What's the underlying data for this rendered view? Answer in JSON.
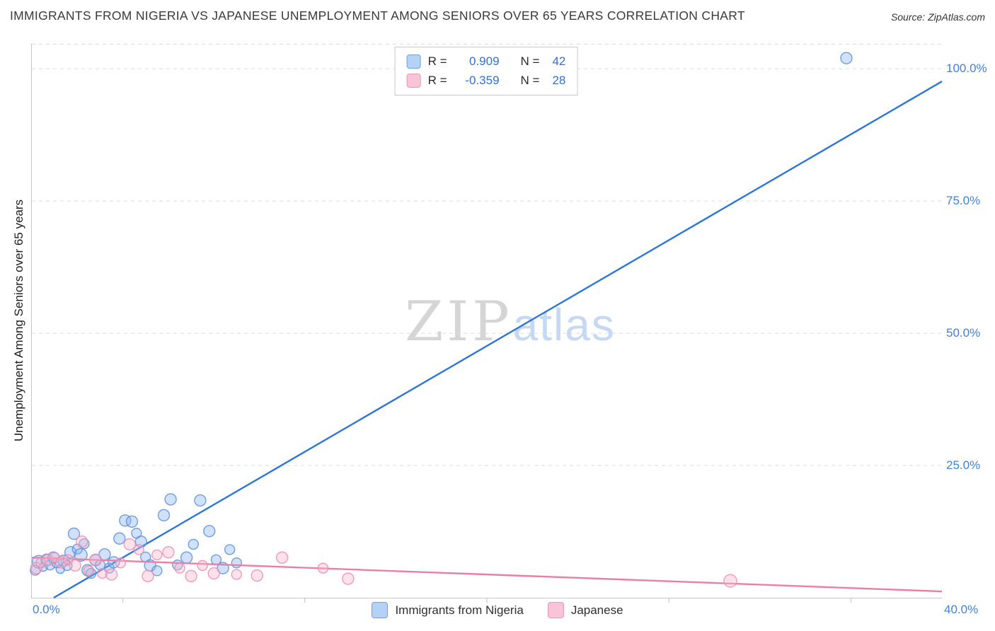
{
  "header": {
    "title": "IMMIGRANTS FROM NIGERIA VS JAPANESE UNEMPLOYMENT AMONG SENIORS OVER 65 YEARS CORRELATION CHART",
    "source": "Source: ZipAtlas.com"
  },
  "watermark": {
    "zip": "ZIP",
    "atlas": "atlas"
  },
  "axes": {
    "y_label": "Unemployment Among Seniors over 65 years",
    "y_ticks": [
      "100.0%",
      "75.0%",
      "50.0%",
      "25.0%"
    ],
    "x_min_label": "0.0%",
    "x_max_label": "40.0%"
  },
  "legend_box": {
    "r_label": "R =",
    "n_label": "N =",
    "series": [
      {
        "r": "0.909",
        "n": "42"
      },
      {
        "r": "-0.359",
        "n": "28"
      }
    ]
  },
  "bottom_legend": [
    {
      "label": "Immigrants from Nigeria"
    },
    {
      "label": "Japanese"
    }
  ],
  "swatches": {
    "nigeria": {
      "fill": "#b4d1f6",
      "border": "#6f9fe0"
    },
    "japanese": {
      "fill": "#f9c3d8",
      "border": "#e995b7"
    }
  },
  "accent_colors": {
    "tick_label": "#4181d8",
    "value_text": "#3170d2"
  },
  "chart_data": {
    "type": "scatter",
    "title": "IMMIGRANTS FROM NIGERIA VS JAPANESE UNEMPLOYMENT AMONG SENIORS OVER 65 YEARS CORRELATION CHART",
    "xlabel": "Immigrants from Nigeria (%)",
    "ylabel": "Unemployment Among Seniors over 65 years (%)",
    "xlim": [
      0,
      40
    ],
    "ylim": [
      0,
      104.7
    ],
    "x_ticks": [
      4,
      12,
      20,
      28,
      36
    ],
    "y_gridlines": [
      25,
      50,
      75,
      100
    ],
    "grid": "dashed-horizontal",
    "legend_position": "top-center",
    "series": [
      {
        "name": "Immigrants from Nigeria",
        "R": 0.909,
        "N": 42,
        "line_color": "#2e76d5",
        "point_fill": "#8ab4ef",
        "point_stroke": "#5b8fdc",
        "trend": {
          "x1": 0.96,
          "y1": 0,
          "x2": 40,
          "y2": 97.6
        },
        "points": [
          [
            0.15,
            5.2,
            7
          ],
          [
            0.3,
            6.8,
            9
          ],
          [
            0.5,
            5.8,
            6
          ],
          [
            0.65,
            7.2,
            8
          ],
          [
            0.8,
            6.2,
            7
          ],
          [
            0.95,
            7.6,
            8
          ],
          [
            1.1,
            6.6,
            7
          ],
          [
            1.25,
            5.4,
            6
          ],
          [
            1.4,
            7.0,
            8
          ],
          [
            1.55,
            6.1,
            7
          ],
          [
            1.7,
            8.6,
            8
          ],
          [
            1.85,
            12.1,
            8
          ],
          [
            2.0,
            9.2,
            7
          ],
          [
            2.15,
            8.1,
            9
          ],
          [
            2.3,
            10.2,
            7
          ],
          [
            2.45,
            5.2,
            8
          ],
          [
            2.6,
            4.6,
            7
          ],
          [
            2.8,
            7.1,
            8
          ],
          [
            3.0,
            6.2,
            7
          ],
          [
            3.2,
            8.2,
            8
          ],
          [
            3.4,
            5.6,
            7
          ],
          [
            3.6,
            6.7,
            8
          ],
          [
            3.85,
            11.2,
            8
          ],
          [
            4.1,
            14.6,
            8
          ],
          [
            4.4,
            14.4,
            8
          ],
          [
            4.6,
            12.2,
            7
          ],
          [
            4.8,
            10.6,
            8
          ],
          [
            5.0,
            7.7,
            7
          ],
          [
            5.2,
            6.1,
            8
          ],
          [
            5.5,
            5.1,
            7
          ],
          [
            5.8,
            15.6,
            8
          ],
          [
            6.1,
            18.6,
            8
          ],
          [
            6.4,
            6.2,
            7
          ],
          [
            6.8,
            7.6,
            8
          ],
          [
            7.1,
            10.1,
            7
          ],
          [
            7.4,
            18.4,
            8
          ],
          [
            7.8,
            12.6,
            8
          ],
          [
            8.1,
            7.2,
            7
          ],
          [
            8.4,
            5.6,
            8
          ],
          [
            8.7,
            9.1,
            7
          ],
          [
            9.0,
            6.6,
            7
          ],
          [
            35.8,
            102,
            8
          ]
        ]
      },
      {
        "name": "Japanese",
        "R": -0.359,
        "N": 28,
        "line_color": "#ec7ea5",
        "point_fill": "#f7b6cd",
        "point_stroke": "#ec8cab",
        "trend": {
          "x1": 0,
          "y1": 7.6,
          "x2": 40,
          "y2": 1.2
        },
        "points": [
          [
            0.2,
            5.6,
            8
          ],
          [
            0.4,
            6.6,
            7
          ],
          [
            0.7,
            7.1,
            8
          ],
          [
            1.0,
            7.6,
            7
          ],
          [
            1.3,
            6.7,
            8
          ],
          [
            1.6,
            7.2,
            7
          ],
          [
            1.9,
            6.1,
            8
          ],
          [
            2.2,
            10.6,
            8
          ],
          [
            2.5,
            5.1,
            7
          ],
          [
            2.8,
            7.2,
            8
          ],
          [
            3.1,
            4.6,
            7
          ],
          [
            3.5,
            4.4,
            8
          ],
          [
            3.9,
            6.6,
            7
          ],
          [
            4.3,
            10.1,
            8
          ],
          [
            4.7,
            9.1,
            7
          ],
          [
            5.1,
            4.1,
            8
          ],
          [
            5.5,
            8.1,
            7
          ],
          [
            6.0,
            8.6,
            8
          ],
          [
            6.5,
            5.6,
            7
          ],
          [
            7.0,
            4.1,
            8
          ],
          [
            7.5,
            6.1,
            7
          ],
          [
            8.0,
            4.6,
            8
          ],
          [
            9.0,
            4.4,
            7
          ],
          [
            9.9,
            4.2,
            8
          ],
          [
            11.0,
            7.6,
            8
          ],
          [
            12.8,
            5.6,
            7
          ],
          [
            13.9,
            3.6,
            8
          ],
          [
            30.7,
            3.2,
            9
          ]
        ]
      }
    ]
  }
}
